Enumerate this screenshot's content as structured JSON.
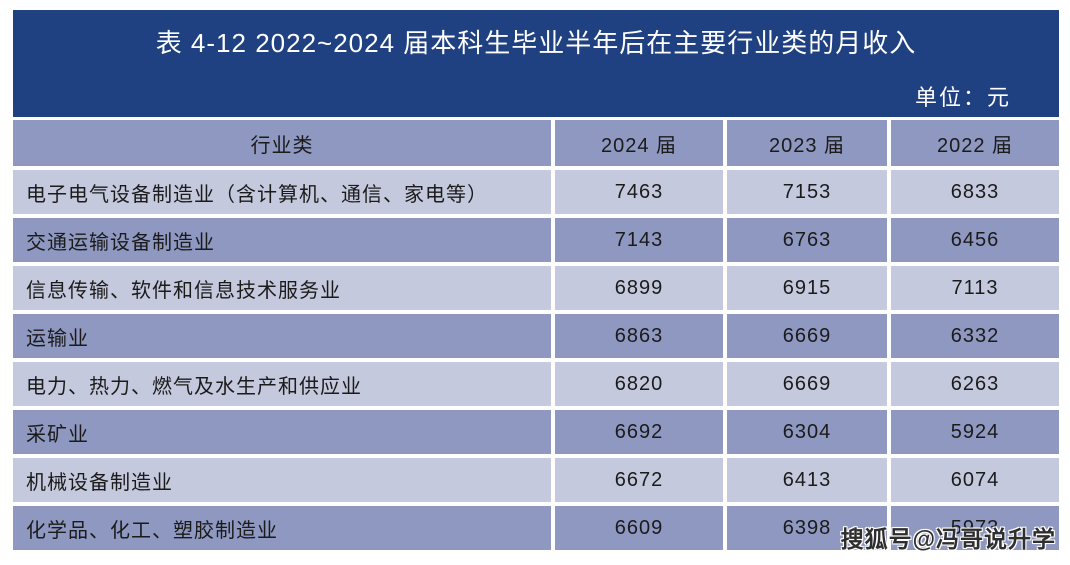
{
  "header": {
    "title": "表 4-12  2022~2024 届本科生毕业半年后在主要行业类的月收入",
    "unit": "单位：元"
  },
  "watermark": "搜狐号@冯哥说升学",
  "colors": {
    "band": "#1f4182",
    "header_row": "#8e98c0",
    "row_dark": "#8e98c0",
    "row_light": "#c5c9dd",
    "text": "#1b1b1b"
  },
  "chart_data": {
    "type": "table",
    "title": "表 4-12 2022~2024 届本科生毕业半年后在主要行业类的月收入",
    "unit": "元",
    "columns": [
      "行业类",
      "2024 届",
      "2023 届",
      "2022 届"
    ],
    "rows": [
      [
        "电子电气设备制造业（含计算机、通信、家电等）",
        7463,
        7153,
        6833
      ],
      [
        "交通运输设备制造业",
        7143,
        6763,
        6456
      ],
      [
        "信息传输、软件和信息技术服务业",
        6899,
        6915,
        7113
      ],
      [
        "运输业",
        6863,
        6669,
        6332
      ],
      [
        "电力、热力、燃气及水生产和供应业",
        6820,
        6669,
        6263
      ],
      [
        "采矿业",
        6692,
        6304,
        5924
      ],
      [
        "机械设备制造业",
        6672,
        6413,
        6074
      ],
      [
        "化学品、化工、塑胶制造业",
        6609,
        6398,
        5973
      ]
    ]
  }
}
